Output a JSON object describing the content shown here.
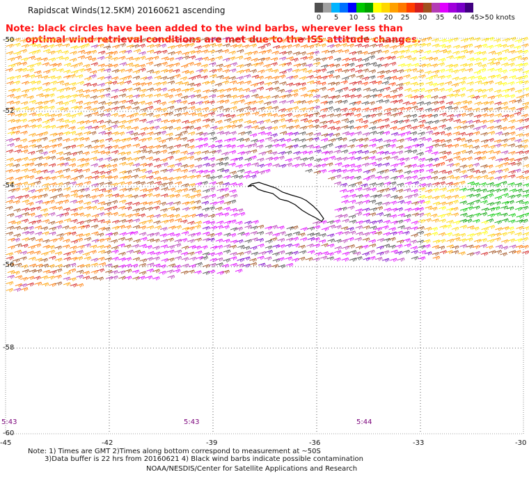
{
  "title": "Rapidscat Winds(12.5KM) 20160621 ascending",
  "note": {
    "line1": "Note: black circles have been added to the wind barbs, wherever less than",
    "line2": "optimal wind retrieval conditions are met due to the ISS attitude changes."
  },
  "legend": {
    "colors": [
      "#505050",
      "#a0a0a0",
      "#00b4ff",
      "#0070ff",
      "#0000ff",
      "#00c800",
      "#00a000",
      "#ffff00",
      "#ffd700",
      "#ffa000",
      "#ff7800",
      "#ff3c00",
      "#d21e1e",
      "#a0501e",
      "#b43cb4",
      "#e000ff",
      "#a000dc",
      "#7800c8",
      "#400080"
    ],
    "labels": [
      "0",
      "5",
      "10",
      "15",
      "20",
      "25",
      "30",
      "35",
      "40",
      "45",
      ">50 knots"
    ]
  },
  "axes": {
    "lon_labels": [
      "-45",
      "-42",
      "-39",
      "-36",
      "-33",
      "-30"
    ],
    "lat_labels": [
      "-50",
      "-52",
      "-54",
      "-56",
      "-58",
      "-60"
    ]
  },
  "time_labels": [
    "5:43",
    "5:43",
    "5:44"
  ],
  "footnotes": {
    "line1": "Note: 1) Times are GMT 2)Times along bottom correspond to measurement at ~50S",
    "line2": "3)Data buffer is 22 hrs from 20160621 4) Black wind barbs indicate possible contamination",
    "credit": "NOAA/NESDIS/Center for Satellite Applications and Research"
  },
  "map": {
    "region": "South Georgia",
    "lon_range": [
      -45,
      -30
    ],
    "lat_range": [
      -60,
      -50
    ]
  }
}
